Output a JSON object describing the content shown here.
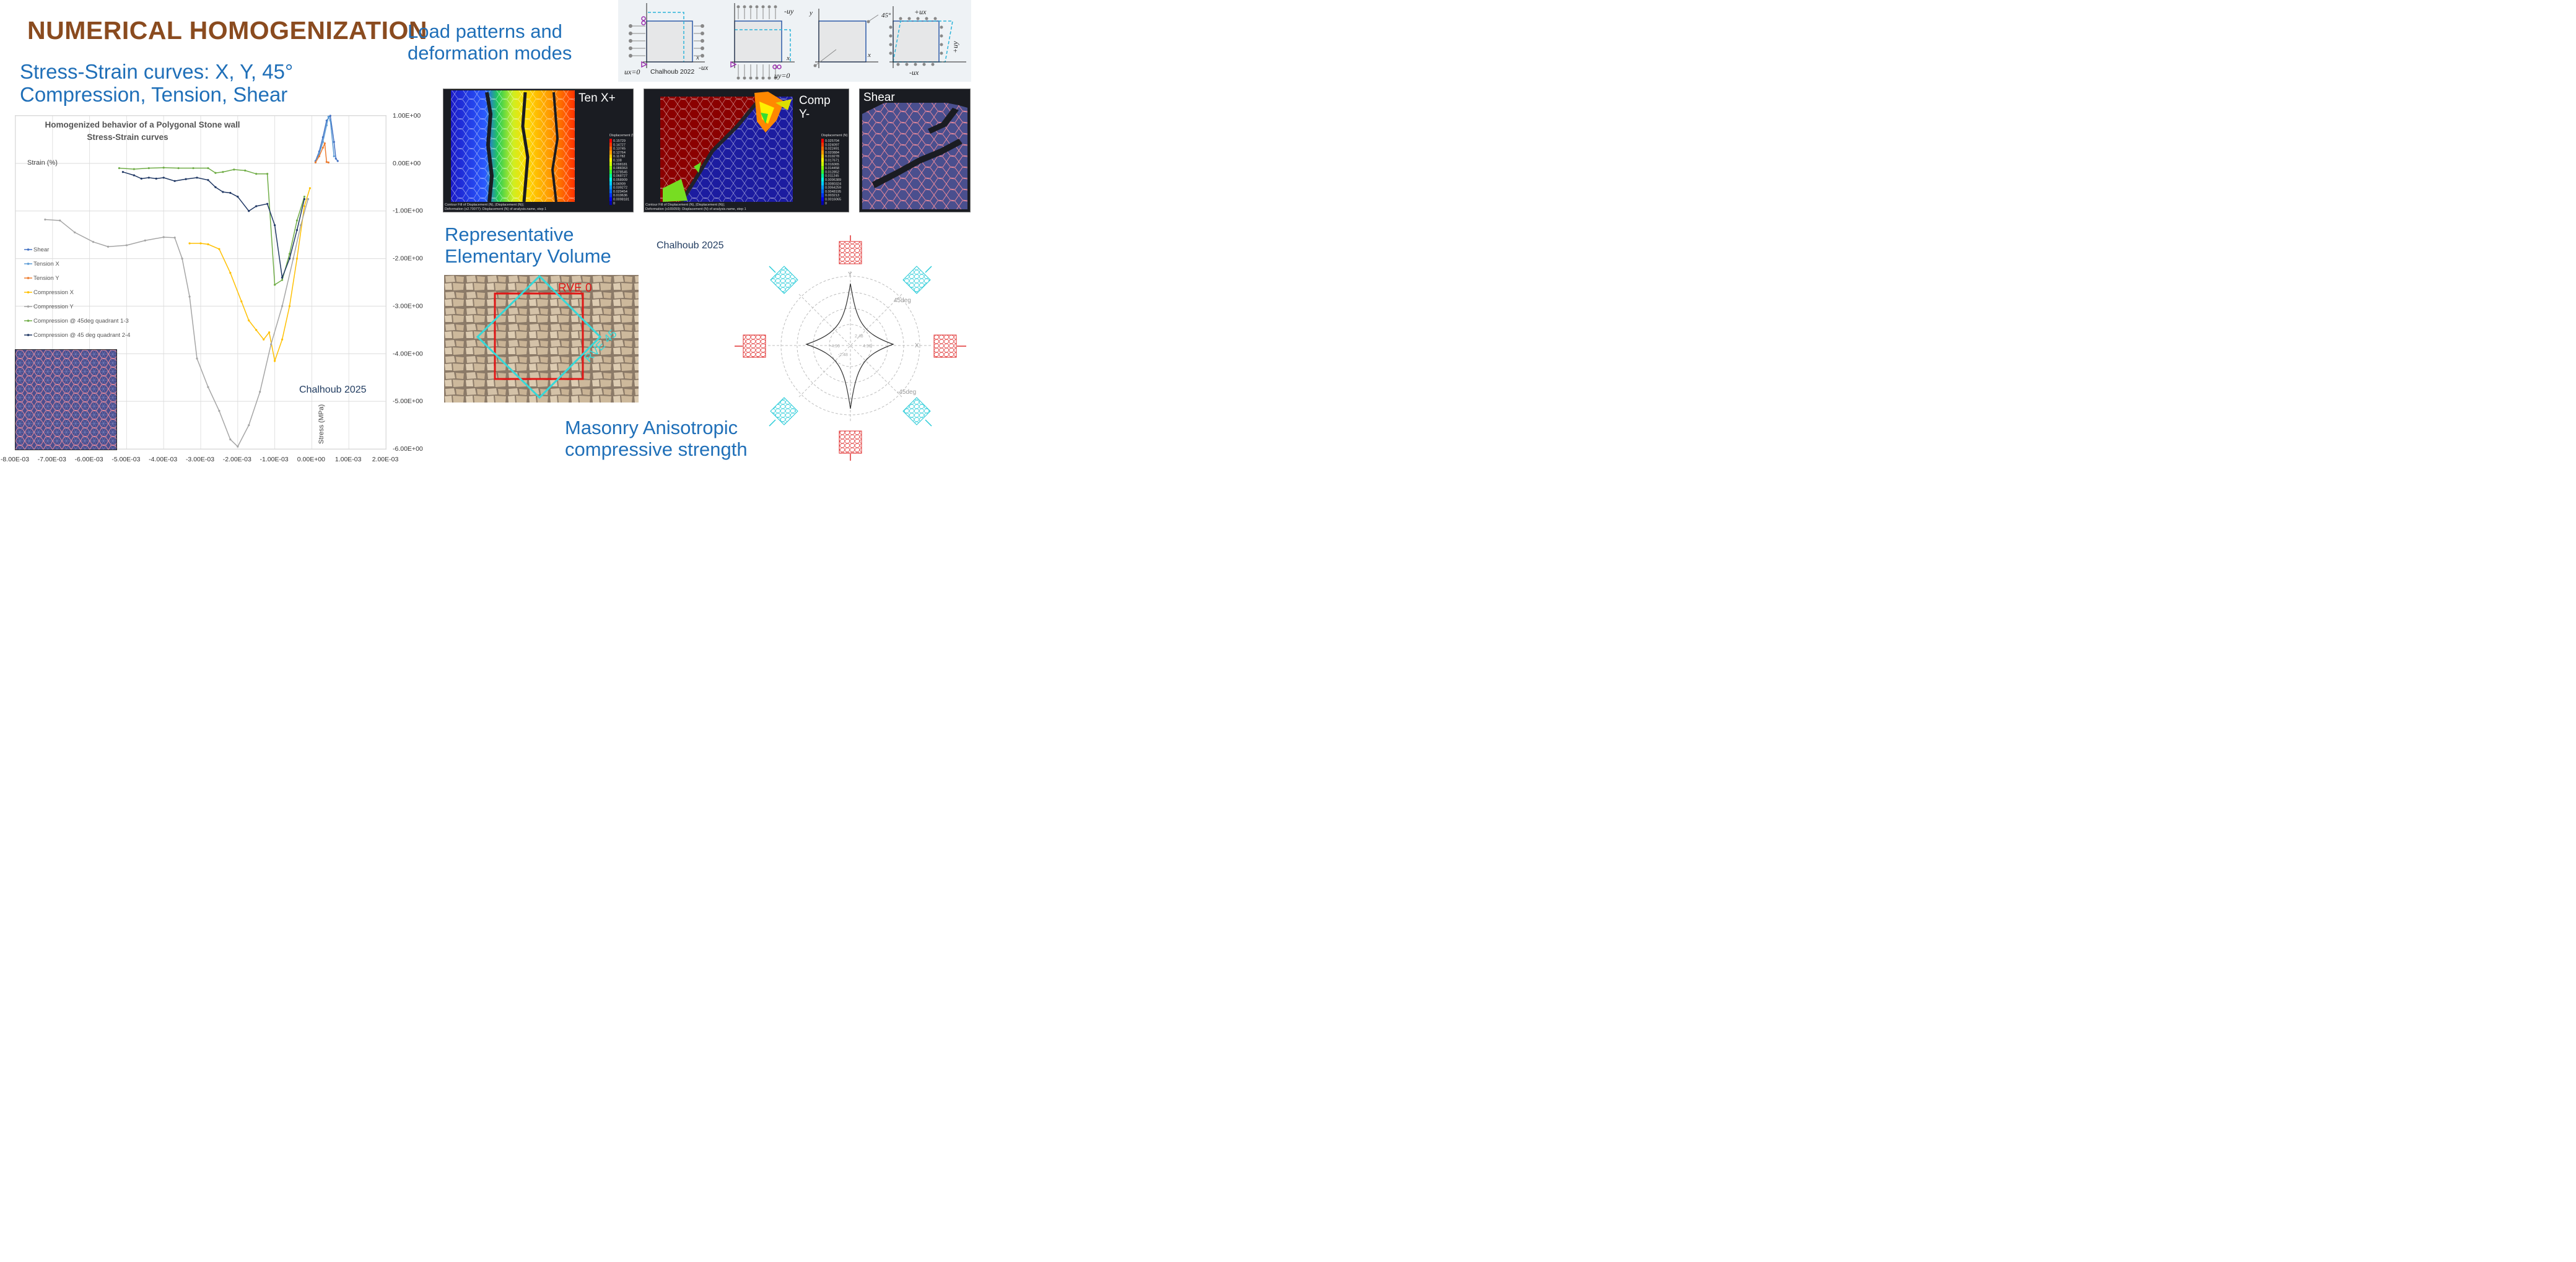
{
  "main_title": "NUMERICAL HOMOGENIZATION",
  "stress_heading": [
    "Stress-Strain curves: X, Y, 45°",
    "Compression, Tension, Shear"
  ],
  "load_heading": [
    "Load patterns and",
    "deformation modes"
  ],
  "rve_heading": [
    "Representative",
    "Elementary Volume"
  ],
  "masonry_heading": [
    "Masonry Anisotropic",
    "compressive strength"
  ],
  "credits": {
    "chart": "Chalhoub 2025",
    "rve": "Chalhoub 2025",
    "load": "Chalhoub 2022"
  },
  "load_labels": {
    "ux0": "ux=0",
    "neg_ux": "-ux",
    "neg_uy": "-uy",
    "uy0": "uy=0",
    "x": "x",
    "y": "y",
    "deg45": "45°",
    "plus_ux": "+ux",
    "plus_uy": "+uy",
    "neg_ux2": "-ux"
  },
  "panels": {
    "ten_x": "Ten X+",
    "comp_y": [
      "Comp",
      "Y-"
    ],
    "shear": "Shear",
    "legend_title": "Displacement (N)",
    "legend_ten": [
      "0.15729",
      "0.14727",
      "0.13745",
      "0.12764",
      "0.11782",
      "0.108",
      "0.098181",
      "0.088363",
      "0.078545",
      "0.068727",
      "0.058909",
      "0.04909",
      "0.039272",
      "0.029454",
      "0.019636",
      "0.0098181",
      "0"
    ],
    "legend_comp": [
      "0.025704",
      "0.024097",
      "0.022491",
      "0.020884",
      "0.019278",
      "0.017671",
      "0.016065",
      "0.014458",
      "0.012852",
      "0.011245",
      "0.0096389",
      "0.0080324",
      "0.0064259",
      "0.0048195",
      "0.003213",
      "0.0016065",
      "0"
    ],
    "caption_ten": [
      "Contour Fill of Displacement (N), |Displacement (N)|;",
      "Deformation (x2.70077): Displacement (N) of analysis.name, step 1"
    ],
    "caption_comp": [
      "Contour Fill of Displacement (N), |Displacement (N)|;",
      "Deformation (x165059): Displacement (N) of analysis.name, step 1"
    ]
  },
  "rve_labels": {
    "rve0": "RVE 0",
    "rve45": "RVE 45"
  },
  "polar": {
    "x": "X",
    "y": "Y",
    "deg45": "45deg",
    "neg45": "-45deg",
    "r_labels": [
      "-4.96",
      "-2.48",
      "2.48",
      "4.96"
    ]
  },
  "chart_data": {
    "type": "line",
    "title": "Homogenized behavior of a Polygonal Stone wall",
    "subtitle": "Stress-Strain curves",
    "xlabel": "Strain (%)",
    "ylabel": "Stress (MPa)",
    "xlim": [
      -0.008,
      0.002
    ],
    "ylim": [
      -6.0,
      1.0
    ],
    "x_ticks": [
      "-8.00E-03",
      "-7.00E-03",
      "-6.00E-03",
      "-5.00E-03",
      "-4.00E-03",
      "-3.00E-03",
      "-2.00E-03",
      "-1.00E-03",
      "0.00E+00",
      "1.00E-03",
      "2.00E-03"
    ],
    "y_ticks": [
      "1.00E+00",
      "0.00E+00",
      "-1.00E+00",
      "-2.00E+00",
      "-3.00E+00",
      "-4.00E+00",
      "-5.00E+00",
      "-6.00E+00"
    ],
    "grid": true,
    "legend_placement": "left",
    "series": [
      {
        "name": "Shear",
        "color": "#4472c4",
        "points": [
          [
            0.0001,
            0.05
          ],
          [
            0.0002,
            0.25
          ],
          [
            0.0003,
            0.55
          ],
          [
            0.0004,
            0.9
          ],
          [
            0.0005,
            1.0
          ],
          [
            0.0006,
            0.45
          ],
          [
            0.00065,
            0.1
          ],
          [
            0.0007,
            0.05
          ]
        ]
      },
      {
        "name": "Tension X",
        "color": "#5b9bd5",
        "points": [
          [
            0.0001,
            0.03
          ],
          [
            0.0002,
            0.2
          ],
          [
            0.0003,
            0.45
          ],
          [
            0.0004,
            0.8
          ],
          [
            0.00045,
            0.98
          ],
          [
            0.0005,
            0.9
          ],
          [
            0.0006,
            0.15
          ]
        ]
      },
      {
        "name": "Tension Y",
        "color": "#ed7d31",
        "points": [
          [
            0.0001,
            0.02
          ],
          [
            0.0002,
            0.15
          ],
          [
            0.0003,
            0.33
          ],
          [
            0.00035,
            0.42
          ],
          [
            0.0004,
            0.03
          ],
          [
            0.00045,
            0.02
          ]
        ]
      },
      {
        "name": "Compression X",
        "color": "#ffc000",
        "points": [
          [
            -0.0033,
            -1.68
          ],
          [
            -0.003,
            -1.68
          ],
          [
            -0.0028,
            -1.7
          ],
          [
            -0.0025,
            -1.8
          ],
          [
            -0.0022,
            -2.3
          ],
          [
            -0.0019,
            -2.9
          ],
          [
            -0.0017,
            -3.3
          ],
          [
            -0.0015,
            -3.5
          ],
          [
            -0.0013,
            -3.7
          ],
          [
            -0.00115,
            -3.55
          ],
          [
            -0.001,
            -4.15
          ],
          [
            -0.0008,
            -3.7
          ],
          [
            -0.0006,
            -3.0
          ],
          [
            -0.0004,
            -2.0
          ],
          [
            -0.0002,
            -0.9
          ],
          [
            -5e-05,
            -0.52
          ]
        ]
      },
      {
        "name": "Compression Y",
        "color": "#a5a5a5",
        "points": [
          [
            -0.0072,
            -1.18
          ],
          [
            -0.0068,
            -1.2
          ],
          [
            -0.0064,
            -1.45
          ],
          [
            -0.0059,
            -1.65
          ],
          [
            -0.0055,
            -1.75
          ],
          [
            -0.005,
            -1.72
          ],
          [
            -0.0045,
            -1.62
          ],
          [
            -0.004,
            -1.55
          ],
          [
            -0.0037,
            -1.56
          ],
          [
            -0.0035,
            -2.0
          ],
          [
            -0.0033,
            -2.8
          ],
          [
            -0.0031,
            -4.1
          ],
          [
            -0.0028,
            -4.7
          ],
          [
            -0.0025,
            -5.2
          ],
          [
            -0.0022,
            -5.8
          ],
          [
            -0.002,
            -5.95
          ],
          [
            -0.0017,
            -5.5
          ],
          [
            -0.0014,
            -4.8
          ],
          [
            -0.0011,
            -3.8
          ],
          [
            -0.0008,
            -3.0
          ],
          [
            -0.0005,
            -2.0
          ],
          [
            -0.0003,
            -1.3
          ],
          [
            -0.0001,
            -0.75
          ]
        ]
      },
      {
        "name": "Compression @ 45deg quadrant 1-3",
        "color": "#70ad47",
        "points": [
          [
            -0.0052,
            -0.1
          ],
          [
            -0.0048,
            -0.12
          ],
          [
            -0.0044,
            -0.1
          ],
          [
            -0.004,
            -0.09
          ],
          [
            -0.0036,
            -0.1
          ],
          [
            -0.0032,
            -0.1
          ],
          [
            -0.0028,
            -0.1
          ],
          [
            -0.0026,
            -0.2
          ],
          [
            -0.0024,
            -0.18
          ],
          [
            -0.0021,
            -0.13
          ],
          [
            -0.0018,
            -0.15
          ],
          [
            -0.0015,
            -0.22
          ],
          [
            -0.0012,
            -0.22
          ],
          [
            -0.001,
            -2.55
          ],
          [
            -0.0008,
            -2.45
          ],
          [
            -0.0006,
            -1.9
          ],
          [
            -0.0004,
            -1.2
          ],
          [
            -0.0002,
            -0.7
          ]
        ]
      },
      {
        "name": "Compression @ 45 deg quadrant 2-4",
        "color": "#203864",
        "points": [
          [
            -0.0051,
            -0.18
          ],
          [
            -0.0048,
            -0.25
          ],
          [
            -0.0046,
            -0.32
          ],
          [
            -0.0044,
            -0.3
          ],
          [
            -0.0042,
            -0.32
          ],
          [
            -0.004,
            -0.3
          ],
          [
            -0.0037,
            -0.37
          ],
          [
            -0.0034,
            -0.33
          ],
          [
            -0.0031,
            -0.3
          ],
          [
            -0.0028,
            -0.35
          ],
          [
            -0.0026,
            -0.5
          ],
          [
            -0.0024,
            -0.6
          ],
          [
            -0.0022,
            -0.62
          ],
          [
            -0.002,
            -0.7
          ],
          [
            -0.0017,
            -1.0
          ],
          [
            -0.0015,
            -0.9
          ],
          [
            -0.0012,
            -0.85
          ],
          [
            -0.001,
            -1.3
          ],
          [
            -0.0008,
            -2.4
          ],
          [
            -0.0006,
            -2.0
          ],
          [
            -0.0004,
            -1.4
          ],
          [
            -0.0002,
            -0.75
          ]
        ]
      }
    ]
  }
}
